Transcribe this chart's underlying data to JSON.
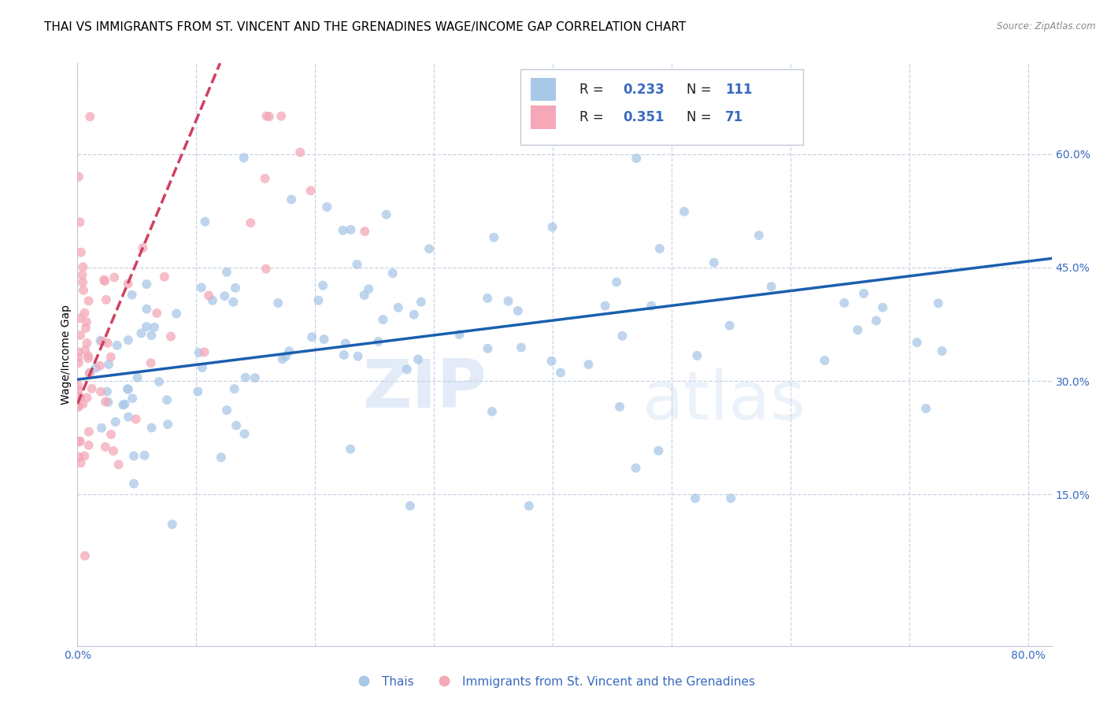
{
  "title": "THAI VS IMMIGRANTS FROM ST. VINCENT AND THE GRENADINES WAGE/INCOME GAP CORRELATION CHART",
  "source": "Source: ZipAtlas.com",
  "ylabel": "Wage/Income Gap",
  "xlim": [
    0.0,
    0.82
  ],
  "ylim": [
    -0.05,
    0.72
  ],
  "ytick_positions": [
    0.15,
    0.3,
    0.45,
    0.6
  ],
  "ytick_labels": [
    "15.0%",
    "30.0%",
    "45.0%",
    "60.0%"
  ],
  "blue_color": "#a8c8e8",
  "pink_color": "#f4a8b8",
  "trend_blue": "#1a5faf",
  "trend_pink": "#d04060",
  "legend_R_blue": "0.233",
  "legend_N_blue": "111",
  "legend_R_pink": "0.351",
  "legend_N_pink": "71",
  "label_blue": "Thais",
  "label_pink": "Immigrants from St. Vincent and the Grenadines",
  "watermark_zip": "ZIP",
  "watermark_atlas": "atlas",
  "dot_size": 75,
  "dot_alpha": 0.75,
  "trend_linewidth": 2.5,
  "grid_color": "#c8d4e4",
  "background_color": "#ffffff",
  "axis_color": "#3a6abf",
  "title_fontsize": 11,
  "axis_label_fontsize": 10,
  "tick_label_fontsize": 10,
  "blue_trend_x0": 0.0,
  "blue_trend_x1": 0.82,
  "blue_trend_y0": 0.302,
  "blue_trend_y1": 0.462,
  "pink_trend_x0": 0.0,
  "pink_trend_x1": 0.12,
  "pink_trend_y0": 0.27,
  "pink_trend_y1": 0.72
}
